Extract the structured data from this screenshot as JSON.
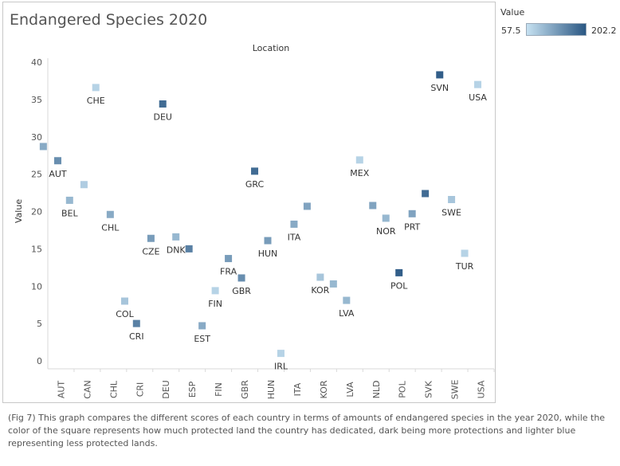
{
  "chart_data": {
    "type": "scatter",
    "title": "Endangered Species 2020",
    "column_header": "Location",
    "xlabel": "",
    "ylabel": "Value",
    "ylim": [
      0,
      40
    ],
    "yticks": [
      0,
      5,
      10,
      15,
      20,
      25,
      30,
      35,
      40
    ],
    "categories": [
      "AUT",
      "CAN",
      "CHL",
      "CRI",
      "DEU",
      "ESP",
      "FIN",
      "GBR",
      "HUN",
      "ITA",
      "KOR",
      "LVA",
      "NLD",
      "POL",
      "SVK",
      "SWE",
      "USA"
    ],
    "grid": false,
    "marker": "square",
    "color_legend": {
      "title": "Value",
      "min": "57.5",
      "max": "202.2",
      "min_color": "#c6e1f1",
      "max_color": "#2a5783"
    },
    "points": [
      {
        "x": "AUT",
        "offset": -0.55,
        "y": 28.7,
        "c": 0.4,
        "label": ""
      },
      {
        "x": "AUT",
        "offset": 0,
        "y": 26.8,
        "c": 0.6,
        "label": "AUT"
      },
      {
        "x": "CAN",
        "offset": -0.55,
        "y": 21.5,
        "c": 0.3,
        "label": "BEL"
      },
      {
        "x": "CAN",
        "offset": 0,
        "y": 23.6,
        "c": 0.15,
        "label": ""
      },
      {
        "x": "CAN",
        "offset": 0.45,
        "y": 36.6,
        "c": 0.1,
        "label": "CHE"
      },
      {
        "x": "CHL",
        "offset": 0,
        "y": 19.6,
        "c": 0.4,
        "label": "CHL"
      },
      {
        "x": "CRI",
        "offset": -0.45,
        "y": 8.0,
        "c": 0.2,
        "label": "COL"
      },
      {
        "x": "CRI",
        "offset": 0,
        "y": 5.0,
        "c": 0.7,
        "label": "CRI"
      },
      {
        "x": "CRI",
        "offset": 0.55,
        "y": 16.4,
        "c": 0.5,
        "label": "CZE"
      },
      {
        "x": "DEU",
        "offset": 0,
        "y": 34.4,
        "c": 0.85,
        "label": "DEU"
      },
      {
        "x": "DEU",
        "offset": 0.5,
        "y": 16.6,
        "c": 0.3,
        "label": "DNK"
      },
      {
        "x": "ESP",
        "offset": 0,
        "y": 15.0,
        "c": 0.7,
        "label": ""
      },
      {
        "x": "ESP",
        "offset": 0.5,
        "y": 4.7,
        "c": 0.4,
        "label": "EST"
      },
      {
        "x": "FIN",
        "offset": 0,
        "y": 9.4,
        "c": 0.1,
        "label": "FIN"
      },
      {
        "x": "FIN",
        "offset": 0.5,
        "y": 13.7,
        "c": 0.5,
        "label": "FRA"
      },
      {
        "x": "GBR",
        "offset": 0,
        "y": 11.1,
        "c": 0.6,
        "label": "GBR"
      },
      {
        "x": "GBR",
        "offset": 0.5,
        "y": 25.4,
        "c": 0.85,
        "label": "GRC"
      },
      {
        "x": "HUN",
        "offset": 0,
        "y": 16.1,
        "c": 0.5,
        "label": "HUN"
      },
      {
        "x": "HUN",
        "offset": 0.5,
        "y": 1.0,
        "c": 0.1,
        "label": "IRL"
      },
      {
        "x": "ITA",
        "offset": 0,
        "y": 18.3,
        "c": 0.4,
        "label": "ITA"
      },
      {
        "x": "ITA",
        "offset": 0.5,
        "y": 20.7,
        "c": 0.45,
        "label": ""
      },
      {
        "x": "KOR",
        "offset": 0,
        "y": 11.2,
        "c": 0.2,
        "label": "KOR"
      },
      {
        "x": "KOR",
        "offset": 0.5,
        "y": 10.3,
        "c": 0.3,
        "label": ""
      },
      {
        "x": "LVA",
        "offset": 0,
        "y": 8.1,
        "c": 0.3,
        "label": "LVA"
      },
      {
        "x": "LVA",
        "offset": 0.5,
        "y": 26.9,
        "c": 0.1,
        "label": "MEX"
      },
      {
        "x": "NLD",
        "offset": 0,
        "y": 20.8,
        "c": 0.45,
        "label": ""
      },
      {
        "x": "NLD",
        "offset": 0.5,
        "y": 19.1,
        "c": 0.3,
        "label": "NOR"
      },
      {
        "x": "POL",
        "offset": 0,
        "y": 11.8,
        "c": 0.95,
        "label": "POL"
      },
      {
        "x": "POL",
        "offset": 0.5,
        "y": 19.7,
        "c": 0.45,
        "label": "PRT"
      },
      {
        "x": "SVK",
        "offset": 0,
        "y": 22.4,
        "c": 0.85,
        "label": ""
      },
      {
        "x": "SVK",
        "offset": 0.55,
        "y": 38.3,
        "c": 0.95,
        "label": "SVN"
      },
      {
        "x": "SWE",
        "offset": 0,
        "y": 21.6,
        "c": 0.2,
        "label": "SWE"
      },
      {
        "x": "SWE",
        "offset": 0.5,
        "y": 14.4,
        "c": 0.1,
        "label": "TUR"
      },
      {
        "x": "USA",
        "offset": 0,
        "y": 37.0,
        "c": 0.1,
        "label": "USA"
      }
    ]
  },
  "caption": "(Fig 7) This graph compares the different scores of each country in terms of amounts of endangered species in the year 2020, while the color of the square represents how much protected land the country has dedicated, dark being more protections and lighter blue representing less protected lands."
}
